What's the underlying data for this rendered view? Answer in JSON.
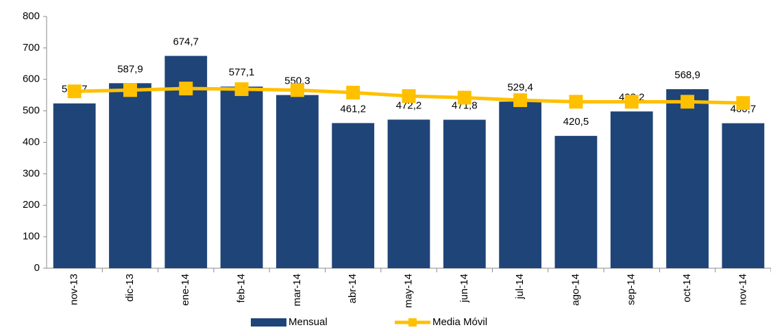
{
  "chart_data": {
    "type": "bar",
    "categories": [
      "nov-13",
      "dic-13",
      "ene-14",
      "feb-14",
      "mar-14",
      "abr-14",
      "may-14",
      "jun-14",
      "jul-14",
      "ago-14",
      "sep-14",
      "oct-14",
      "nov-14"
    ],
    "series": [
      {
        "name": "Mensual",
        "type": "bar",
        "color": "#1f4478",
        "values": [
          523.7,
          587.9,
          674.7,
          577.1,
          550.3,
          461.2,
          472.2,
          471.8,
          529.4,
          420.5,
          498.2,
          568.9,
          460.7
        ],
        "value_labels": [
          "523,7",
          "587,9",
          "674,7",
          "577,1",
          "550,3",
          "461,2",
          "472,2",
          "471,8",
          "529,4",
          "420,5",
          "498,2",
          "568,9",
          "460,7"
        ]
      },
      {
        "name": "Media Móvil",
        "type": "line",
        "color": "#ffc000",
        "values": [
          562,
          566,
          571,
          569,
          566,
          558,
          547,
          542,
          534,
          529,
          529,
          529,
          525
        ]
      }
    ],
    "ylim": [
      0,
      800
    ],
    "yticks": [
      0,
      100,
      200,
      300,
      400,
      500,
      600,
      700,
      800
    ],
    "legend": "bottom"
  }
}
